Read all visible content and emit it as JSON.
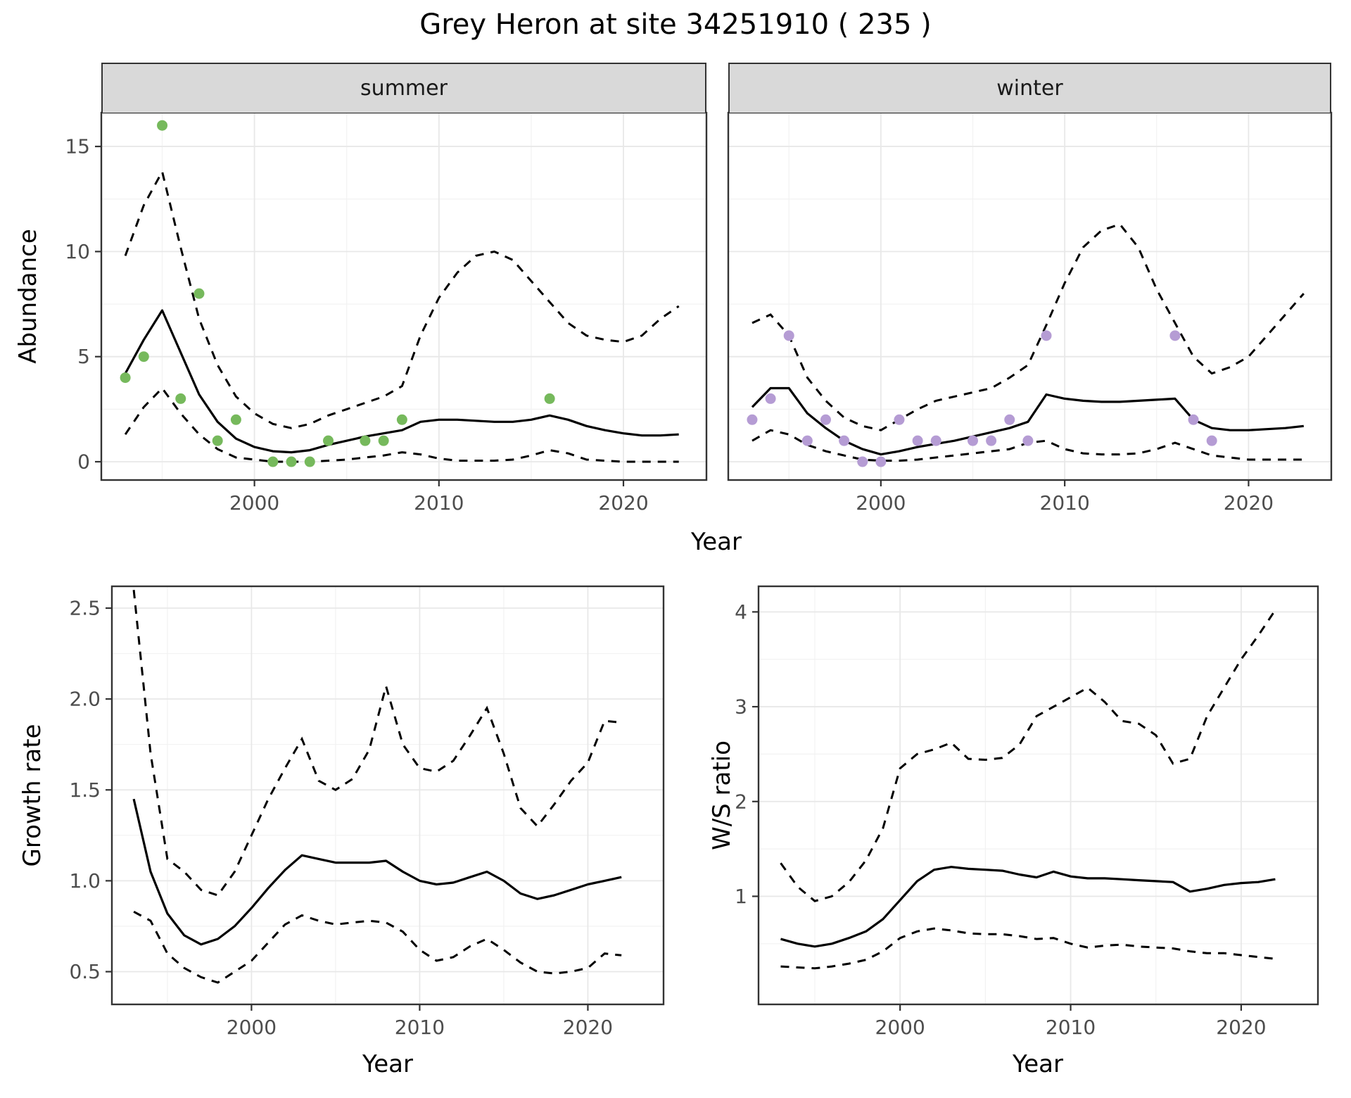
{
  "title": "Grey Heron at site 34251910 ( 235 )",
  "labels": {
    "year": "Year",
    "abundance": "Abundance",
    "growth": "Growth rate",
    "ws": "W/S ratio"
  },
  "facets": {
    "summer": "summer",
    "winter": "winter"
  },
  "colors": {
    "summer_point": "#76b95c",
    "winter_point": "#b59cd4",
    "line": "#000000",
    "grid_major": "#e8e8e8",
    "grid_minor": "#f2f2f2",
    "panel_border": "#333333",
    "tick_mark": "#333333",
    "tick_text": "#4d4d4d",
    "strip_bg": "#d9d9d9"
  },
  "chart_data": [
    {
      "id": "summer",
      "type": "line",
      "facet": "summer",
      "ylabel": "Abundance",
      "xlabel": "Year",
      "xlim": [
        1991.7,
        2024.5
      ],
      "ylim": [
        -0.87,
        16.61
      ],
      "xticks": [
        2000,
        2010,
        2020
      ],
      "yticks": [
        0,
        5,
        10,
        15
      ],
      "x_minor": [
        1995,
        2005,
        2015
      ],
      "y_minor": [
        2.5,
        7.5,
        12.5
      ],
      "years": [
        1993,
        1994,
        1995,
        1996,
        1997,
        1998,
        1999,
        2000,
        2001,
        2002,
        2003,
        2004,
        2005,
        2006,
        2007,
        2008,
        2009,
        2010,
        2011,
        2012,
        2013,
        2014,
        2015,
        2016,
        2017,
        2018,
        2019,
        2020,
        2021,
        2022,
        2023
      ],
      "mean": [
        4.2,
        5.8,
        7.2,
        5.2,
        3.2,
        1.9,
        1.1,
        0.7,
        0.5,
        0.45,
        0.55,
        0.8,
        1.0,
        1.2,
        1.35,
        1.5,
        1.9,
        2.0,
        2.0,
        1.95,
        1.9,
        1.9,
        2.0,
        2.2,
        2.0,
        1.7,
        1.5,
        1.35,
        1.25,
        1.25,
        1.3
      ],
      "upper": [
        9.8,
        12.2,
        13.8,
        10.2,
        6.8,
        4.6,
        3.1,
        2.3,
        1.8,
        1.6,
        1.8,
        2.2,
        2.5,
        2.8,
        3.1,
        3.6,
        6.0,
        7.8,
        9.0,
        9.8,
        10.0,
        9.6,
        8.6,
        7.6,
        6.6,
        6.0,
        5.8,
        5.7,
        6.0,
        6.8,
        7.4
      ],
      "lower": [
        1.3,
        2.6,
        3.5,
        2.3,
        1.3,
        0.6,
        0.2,
        0.1,
        0.0,
        0.0,
        0.0,
        0.05,
        0.1,
        0.2,
        0.3,
        0.45,
        0.35,
        0.15,
        0.05,
        0.05,
        0.05,
        0.1,
        0.3,
        0.55,
        0.4,
        0.1,
        0.05,
        0.0,
        0.0,
        0.0,
        0.0
      ],
      "points": {
        "color_key": "summer_point",
        "x": [
          1993,
          1994,
          1995,
          1996,
          1997,
          1998,
          1999,
          2001,
          2002,
          2003,
          2004,
          2006,
          2007,
          2008,
          2016
        ],
        "y": [
          4,
          5,
          16,
          3,
          8,
          1,
          2,
          0,
          0,
          0,
          1,
          1,
          1,
          2,
          3
        ]
      }
    },
    {
      "id": "winter",
      "type": "line",
      "facet": "winter",
      "ylabel": "Abundance",
      "xlabel": "Year",
      "xlim": [
        1991.7,
        2024.5
      ],
      "ylim": [
        -0.87,
        16.61
      ],
      "xticks": [
        2000,
        2010,
        2020
      ],
      "yticks": [
        0,
        5,
        10,
        15
      ],
      "x_minor": [
        1995,
        2005,
        2015
      ],
      "y_minor": [
        2.5,
        7.5,
        12.5
      ],
      "years": [
        1993,
        1994,
        1995,
        1996,
        1997,
        1998,
        1999,
        2000,
        2001,
        2002,
        2003,
        2004,
        2005,
        2006,
        2007,
        2008,
        2009,
        2010,
        2011,
        2012,
        2013,
        2014,
        2015,
        2016,
        2017,
        2018,
        2019,
        2020,
        2021,
        2022,
        2023
      ],
      "mean": [
        2.6,
        3.5,
        3.5,
        2.3,
        1.6,
        1.0,
        0.6,
        0.35,
        0.5,
        0.7,
        0.85,
        1.0,
        1.2,
        1.4,
        1.6,
        1.9,
        3.2,
        3.0,
        2.9,
        2.85,
        2.85,
        2.9,
        2.95,
        3.0,
        2.0,
        1.6,
        1.5,
        1.5,
        1.55,
        1.6,
        1.7
      ],
      "upper": [
        6.6,
        7.0,
        6.0,
        4.0,
        2.9,
        2.1,
        1.7,
        1.5,
        2.0,
        2.5,
        2.9,
        3.1,
        3.3,
        3.5,
        4.0,
        4.6,
        6.5,
        8.5,
        10.2,
        11.0,
        11.3,
        10.2,
        8.2,
        6.6,
        5.0,
        4.2,
        4.5,
        5.0,
        6.0,
        7.0,
        8.0
      ],
      "lower": [
        1.0,
        1.5,
        1.3,
        0.8,
        0.5,
        0.3,
        0.1,
        0.05,
        0.05,
        0.1,
        0.2,
        0.3,
        0.4,
        0.5,
        0.6,
        0.9,
        1.0,
        0.6,
        0.4,
        0.35,
        0.35,
        0.4,
        0.6,
        0.9,
        0.6,
        0.3,
        0.2,
        0.1,
        0.1,
        0.1,
        0.1
      ],
      "points": {
        "color_key": "winter_point",
        "x": [
          1993,
          1994,
          1995,
          1996,
          1997,
          1998,
          1999,
          2000,
          2001,
          2002,
          2003,
          2005,
          2006,
          2007,
          2008,
          2009,
          2016,
          2017,
          2018
        ],
        "y": [
          2,
          3,
          6,
          1,
          2,
          1,
          0,
          0,
          2,
          1,
          1,
          1,
          1,
          2,
          1,
          6,
          6,
          2,
          1
        ]
      }
    },
    {
      "id": "growth",
      "type": "line",
      "facet": null,
      "ylabel": "Growth rate",
      "xlabel": "Year",
      "xlim": [
        1991.7,
        2024.5
      ],
      "ylim": [
        0.32,
        2.62
      ],
      "xticks": [
        2000,
        2010,
        2020
      ],
      "yticks": [
        0.5,
        1.0,
        1.5,
        2.0,
        2.5
      ],
      "ytick_labels": [
        "0.5",
        "1.0",
        "1.5",
        "2.0",
        "2.5"
      ],
      "x_minor": [
        1995,
        2005,
        2015
      ],
      "y_minor": [
        0.75,
        1.25,
        1.75,
        2.25
      ],
      "years": [
        1993,
        1994,
        1995,
        1996,
        1997,
        1998,
        1999,
        2000,
        2001,
        2002,
        2003,
        2004,
        2005,
        2006,
        2007,
        2008,
        2009,
        2010,
        2011,
        2012,
        2013,
        2014,
        2015,
        2016,
        2017,
        2018,
        2019,
        2020,
        2021,
        2022
      ],
      "mean": [
        1.45,
        1.05,
        0.82,
        0.7,
        0.65,
        0.68,
        0.75,
        0.85,
        0.96,
        1.06,
        1.14,
        1.12,
        1.1,
        1.1,
        1.1,
        1.11,
        1.05,
        1.0,
        0.98,
        0.99,
        1.02,
        1.05,
        1.0,
        0.93,
        0.9,
        0.92,
        0.95,
        0.98,
        1.0,
        1.02
      ],
      "upper": [
        2.6,
        1.7,
        1.12,
        1.05,
        0.95,
        0.92,
        1.05,
        1.25,
        1.45,
        1.62,
        1.78,
        1.55,
        1.5,
        1.56,
        1.72,
        2.07,
        1.75,
        1.62,
        1.6,
        1.66,
        1.8,
        1.95,
        1.7,
        1.4,
        1.3,
        1.42,
        1.55,
        1.65,
        1.88,
        1.87
      ],
      "lower": [
        0.83,
        0.78,
        0.6,
        0.52,
        0.47,
        0.44,
        0.5,
        0.56,
        0.66,
        0.76,
        0.81,
        0.78,
        0.76,
        0.77,
        0.78,
        0.77,
        0.72,
        0.62,
        0.56,
        0.58,
        0.64,
        0.68,
        0.62,
        0.55,
        0.5,
        0.49,
        0.5,
        0.52,
        0.6,
        0.59
      ],
      "points": null
    },
    {
      "id": "ws",
      "type": "line",
      "facet": null,
      "ylabel": "W/S ratio",
      "xlabel": "Year",
      "xlim": [
        1991.7,
        2024.5
      ],
      "ylim": [
        -0.14,
        4.27
      ],
      "xticks": [
        2000,
        2010,
        2020
      ],
      "yticks": [
        1,
        2,
        3,
        4
      ],
      "ytick_labels": [
        "1",
        "2",
        "3",
        "4"
      ],
      "x_minor": [
        1995,
        2005,
        2015
      ],
      "y_minor": [
        0.5,
        1.5,
        2.5,
        3.5
      ],
      "years": [
        1993,
        1994,
        1995,
        1996,
        1997,
        1998,
        1999,
        2000,
        2001,
        2002,
        2003,
        2004,
        2005,
        2006,
        2007,
        2008,
        2009,
        2010,
        2011,
        2012,
        2013,
        2014,
        2015,
        2016,
        2017,
        2018,
        2019,
        2020,
        2021,
        2022
      ],
      "mean": [
        0.55,
        0.5,
        0.47,
        0.5,
        0.56,
        0.63,
        0.76,
        0.96,
        1.16,
        1.28,
        1.31,
        1.29,
        1.28,
        1.27,
        1.23,
        1.2,
        1.26,
        1.21,
        1.19,
        1.19,
        1.18,
        1.17,
        1.16,
        1.15,
        1.05,
        1.08,
        1.12,
        1.14,
        1.15,
        1.18
      ],
      "upper": [
        1.35,
        1.1,
        0.95,
        1.0,
        1.15,
        1.38,
        1.72,
        2.35,
        2.5,
        2.55,
        2.62,
        2.45,
        2.44,
        2.46,
        2.6,
        2.9,
        3.0,
        3.1,
        3.2,
        3.05,
        2.85,
        2.82,
        2.7,
        2.4,
        2.45,
        2.9,
        3.2,
        3.5,
        3.75,
        4.02
      ],
      "lower": [
        0.26,
        0.25,
        0.24,
        0.26,
        0.29,
        0.33,
        0.42,
        0.56,
        0.63,
        0.66,
        0.64,
        0.61,
        0.6,
        0.6,
        0.58,
        0.55,
        0.56,
        0.5,
        0.46,
        0.48,
        0.49,
        0.47,
        0.46,
        0.45,
        0.42,
        0.4,
        0.4,
        0.38,
        0.36,
        0.34
      ],
      "points": null
    }
  ]
}
